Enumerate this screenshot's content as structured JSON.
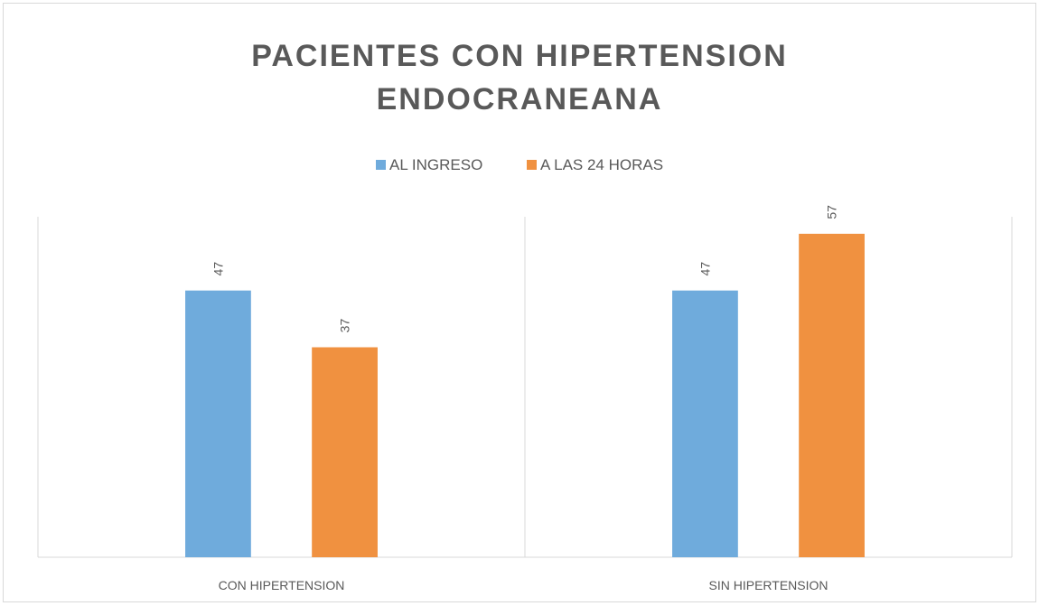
{
  "chart_data": {
    "type": "bar",
    "title": "PACIENTES CON HIPERTENSION ENDOCRANEANA",
    "categories": [
      "CON HIPERTENSION",
      "SIN HIPERTENSION"
    ],
    "series": [
      {
        "name": "AL INGRESO",
        "color": "#6fabdc",
        "values": [
          47,
          47
        ]
      },
      {
        "name": "A LAS 24 HORAS",
        "color": "#f09140",
        "values": [
          37,
          57
        ]
      }
    ],
    "ylim": [
      0,
      60
    ]
  }
}
